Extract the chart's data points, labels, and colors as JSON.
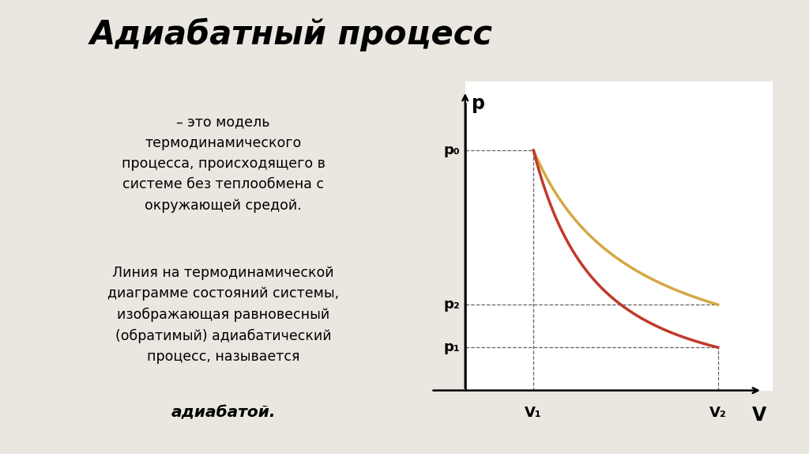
{
  "title": "Адиабатный процесс",
  "title_fontsize": 30,
  "title_fontstyle": "italic",
  "title_fontweight": "bold",
  "bg_color": "#eae7e0",
  "left_bar_color": "#2a2a18",
  "text1": "– это модель\nтермодинамического\nпроцесса, происходящего в\nсистеме без теплообмена с\nокружающей средой.",
  "text2": "Линия на термодинамической\nдиаграмме состояний системы,\nизображающая равновесный\n(обратимый) адиабатический\nпроцесс, называется",
  "text3": "адиабатой.",
  "text_fontsize": 12.5,
  "chart_bg": "#ffffff",
  "adiabat_color": "#c0392b",
  "isotherm_color": "#d4a843",
  "p_label": "p",
  "v_label": "V",
  "p0_label": "p₀",
  "p1_label": "p₁",
  "p2_label": "p₂",
  "v1_label": "V₁",
  "v2_label": "V₂",
  "V1": 1.5,
  "V2": 4.2,
  "gamma_adiabat": 1.67,
  "gamma_isotherm": 1.0,
  "p0": 3.5,
  "Vmin": 0.5,
  "Vmax": 5.0,
  "pmin": 0.0,
  "pmax": 4.5
}
